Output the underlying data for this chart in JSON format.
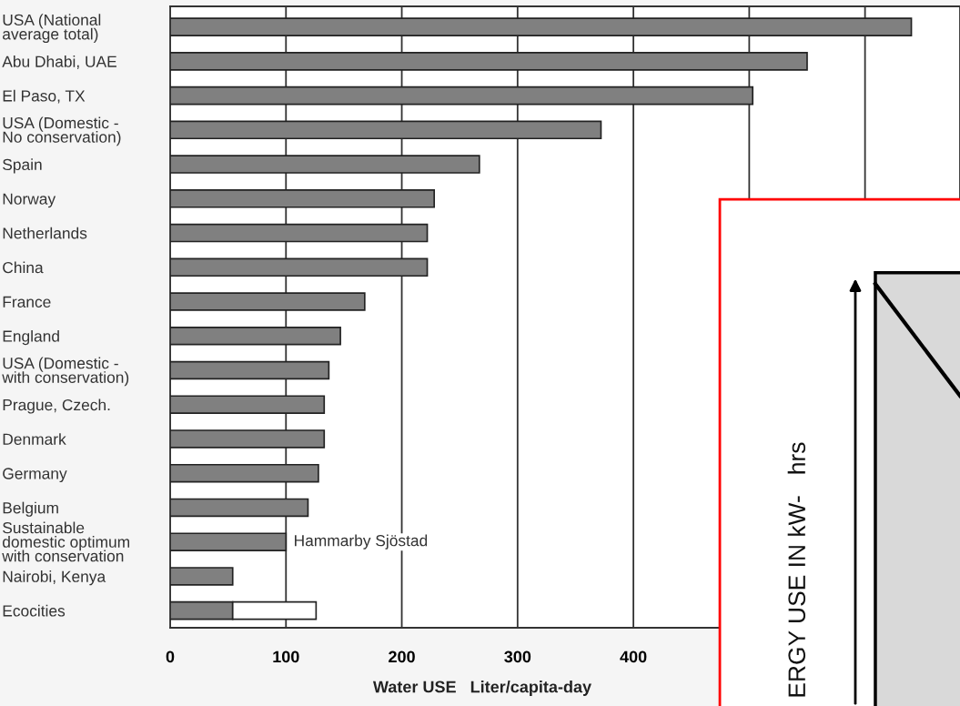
{
  "chart_data": [
    {
      "type": "bar",
      "orientation": "horizontal",
      "stacked": true,
      "xlabel": "Water USE   Liter/capita-day",
      "categories": [
        "USA (National\naverage total)",
        "Abu Dhabi, UAE",
        "El Paso, TX",
        "USA (Domestic -\nNo conservation)",
        "Spain",
        "Norway",
        "Netherlands",
        "China",
        "France",
        "England",
        "USA (Domestic -\nwith conservation)",
        "Prague, Czech.",
        "Denmark",
        "Germany",
        "Belgium",
        "Sustainable\ndomestic optimum\nwith conservation",
        "Nairobi, Kenya",
        "Ecocities"
      ],
      "series": [
        {
          "color": "#808080",
          "values": [
            640,
            550,
            503,
            372,
            267,
            228,
            222,
            222,
            168,
            147,
            137,
            133,
            133,
            128,
            119,
            100,
            54,
            54
          ]
        },
        {
          "color": "#ffffff",
          "values": [
            null,
            null,
            null,
            null,
            null,
            null,
            null,
            null,
            null,
            null,
            null,
            null,
            null,
            null,
            null,
            null,
            null,
            72
          ]
        }
      ],
      "xlim": [
        0,
        682
      ],
      "xticks": [
        0,
        100,
        200,
        300,
        400,
        {
          "value": 500,
          "label": null
        },
        {
          "value": 600,
          "label": null
        }
      ],
      "grid": "x",
      "annotations": [
        {
          "text": "Hammarby Sjöstad",
          "x": 100,
          "y": "Sustainable\ndomestic optimum\nwith conservation"
        }
      ]
    },
    {
      "type": "other",
      "ylabel": "ERGY USE IN kW-   hrs"
    }
  ]
}
